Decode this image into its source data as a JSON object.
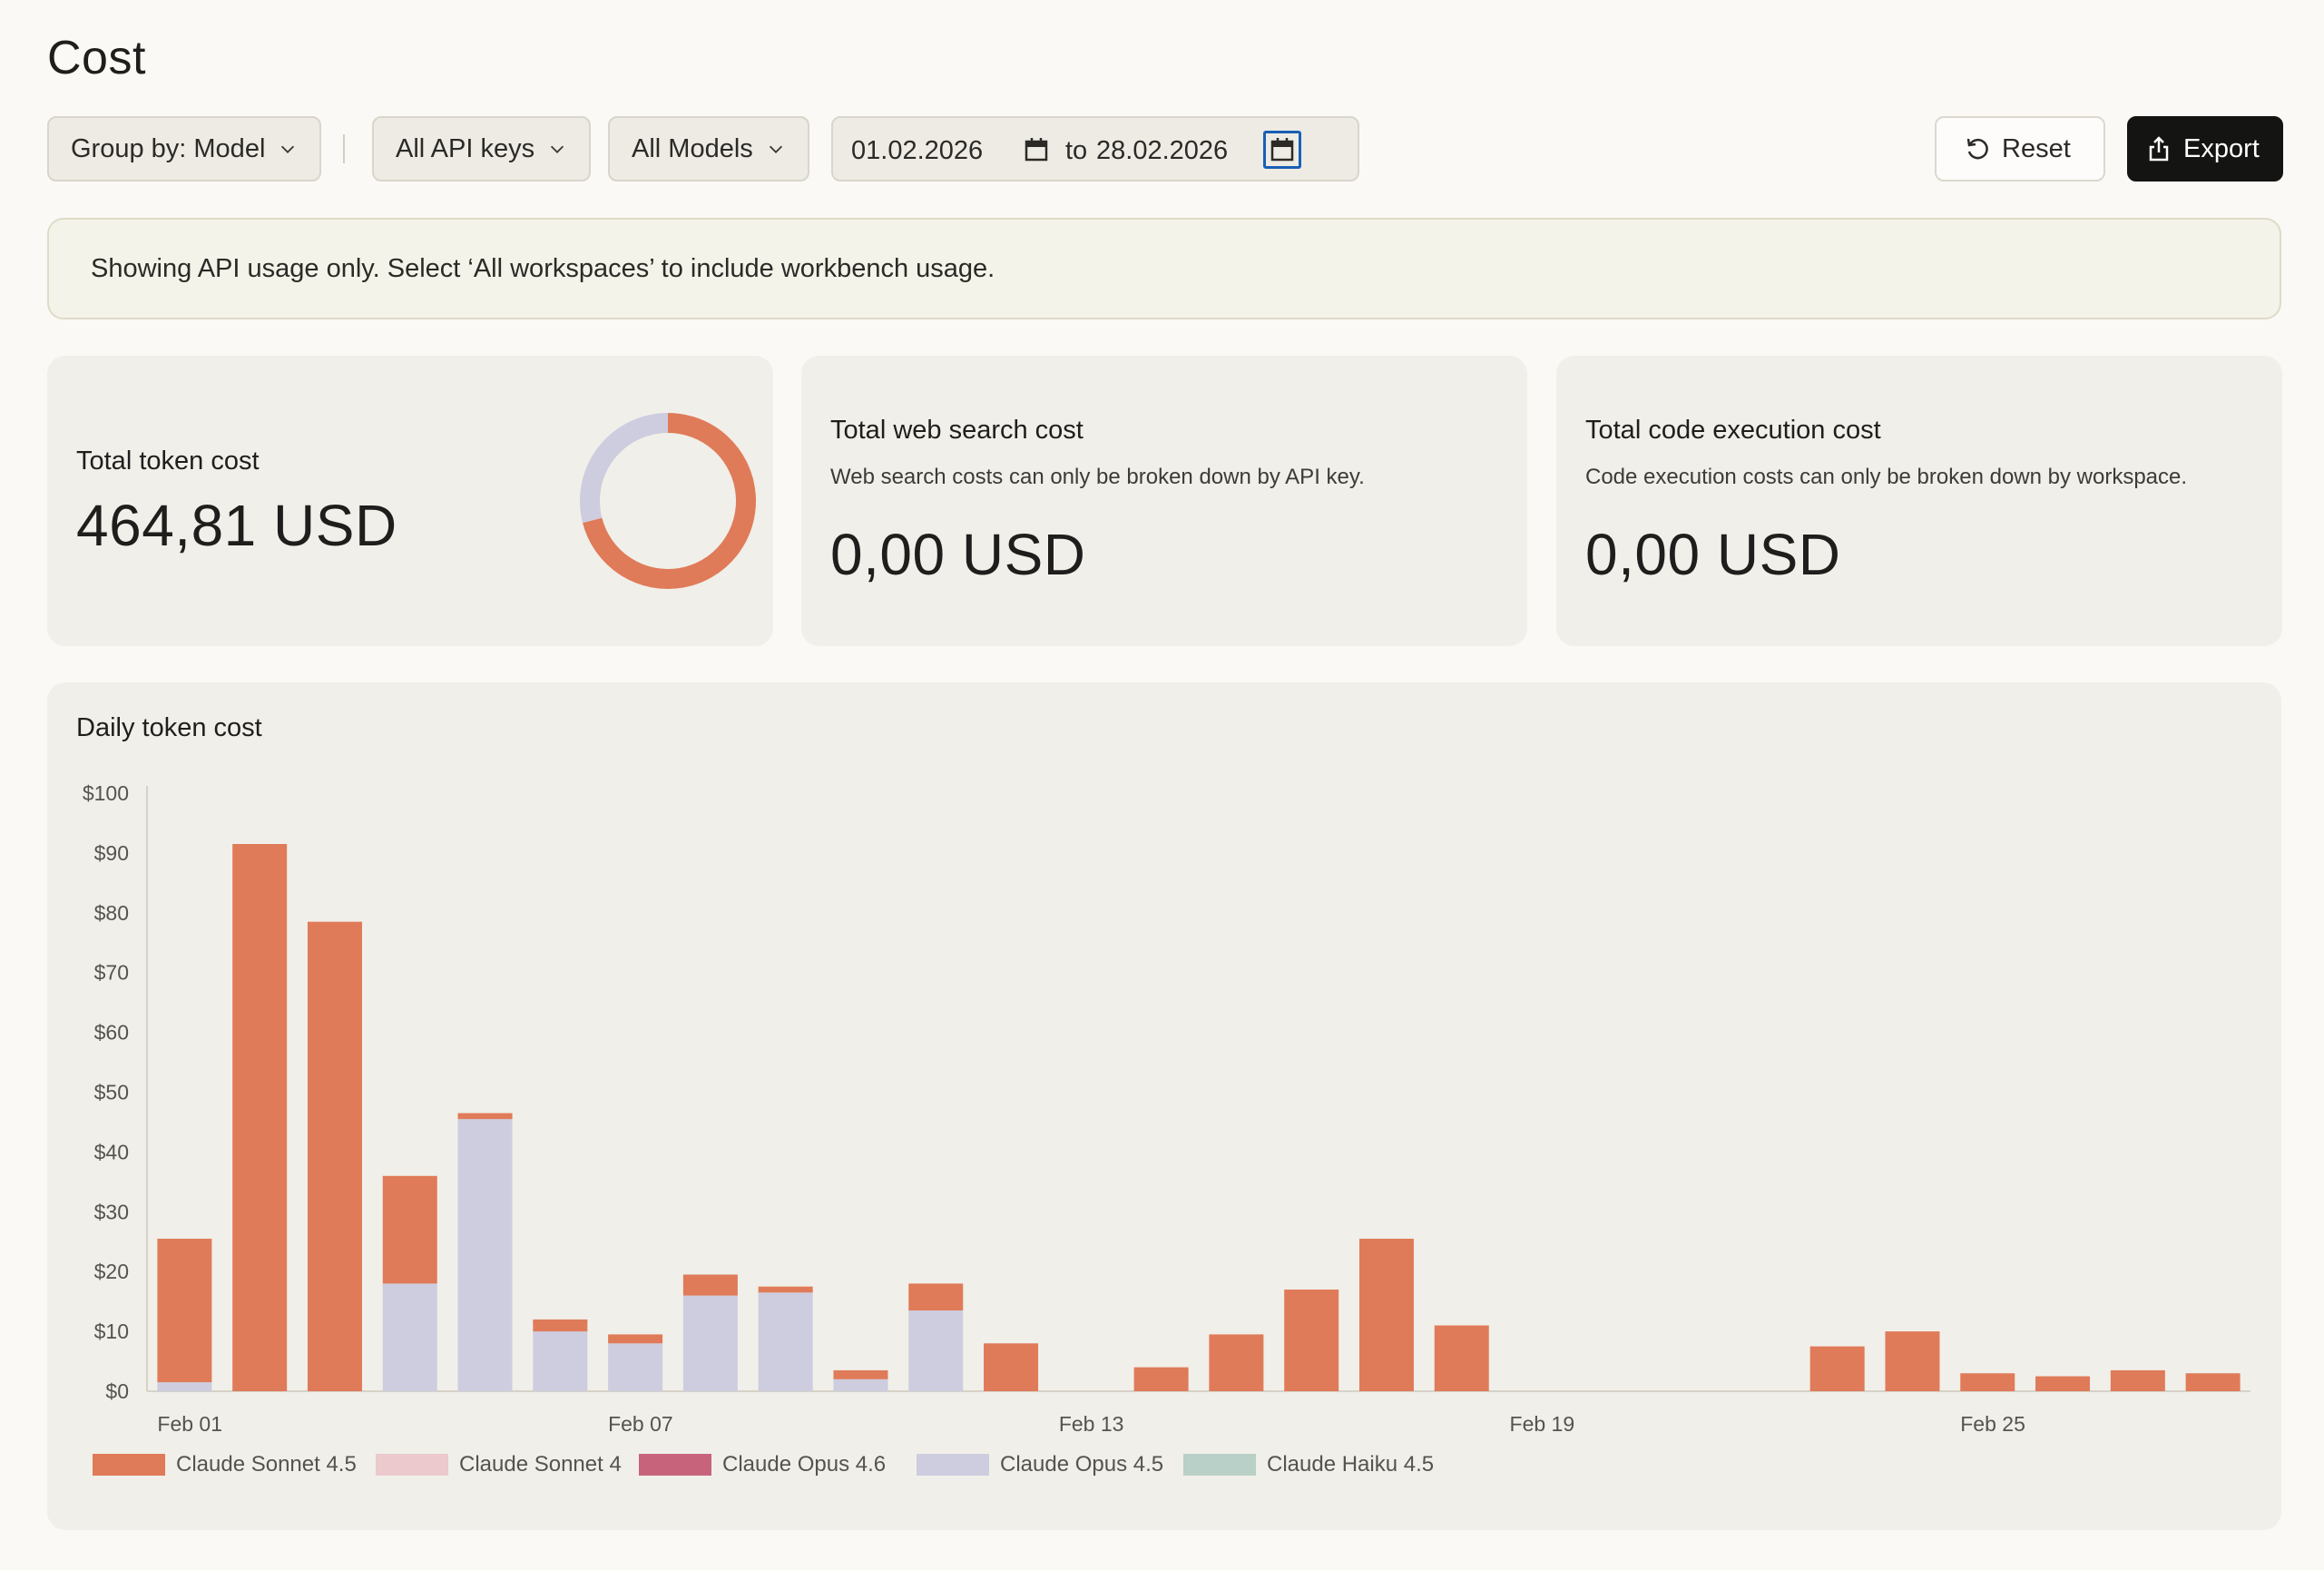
{
  "page_title": "Cost",
  "toolbar": {
    "group_by": "Group by: Model",
    "api_keys": "All API keys",
    "models": "All Models",
    "date_from": "01.02.2026",
    "date_to_prefix": "to",
    "date_to": "28.02.2026",
    "reset_label": "Reset",
    "export_label": "Export"
  },
  "notice": "Showing API usage only. Select ‘All workspaces’ to include workbench usage.",
  "cards": {
    "token": {
      "label": "Total token cost",
      "value": "464,81 USD"
    },
    "web_search": {
      "label": "Total web search cost",
      "sub": "Web search costs can only be broken down by API key.",
      "value": "0,00 USD"
    },
    "code_exec": {
      "label": "Total code execution cost",
      "sub": "Code execution costs can only be broken down by workspace.",
      "value": "0,00 USD"
    }
  },
  "donut": {
    "slices": [
      {
        "name": "Claude Sonnet 4.5",
        "fraction": 0.71
      },
      {
        "name": "Claude Opus 4.5",
        "fraction": 0.29
      }
    ]
  },
  "colors": {
    "sonnet45": "#df7b59",
    "sonnet4": "#ecc9cc",
    "opus46": "#c7647c",
    "opus45": "#cdcddf",
    "haiku45": "#b8d0c7"
  },
  "chart_data": {
    "type": "bar",
    "stacked": true,
    "title": "Daily token cost",
    "xlabel": "",
    "ylabel": "",
    "ylim": [
      0,
      100
    ],
    "y_ticks": [
      "$0",
      "$10",
      "$20",
      "$30",
      "$40",
      "$50",
      "$60",
      "$70",
      "$80",
      "$90",
      "$100"
    ],
    "x_tick_labels": [
      {
        "day": 1,
        "label": "Feb 01"
      },
      {
        "day": 7,
        "label": "Feb 07"
      },
      {
        "day": 13,
        "label": "Feb 13"
      },
      {
        "day": 19,
        "label": "Feb 19"
      },
      {
        "day": 25,
        "label": "Feb 25"
      }
    ],
    "days": [
      1,
      2,
      3,
      4,
      5,
      6,
      7,
      8,
      9,
      10,
      11,
      12,
      13,
      14,
      15,
      16,
      17,
      18,
      19,
      20,
      21,
      22,
      23,
      24,
      25,
      26,
      27,
      28
    ],
    "series": [
      {
        "name": "Claude Opus 4.5",
        "color_key": "opus45",
        "values": [
          1.5,
          0,
          0,
          18,
          45.5,
          10,
          8,
          16,
          16.5,
          2,
          13.5,
          0,
          0,
          0,
          0,
          0,
          0,
          0,
          0,
          0,
          0,
          0,
          0,
          0,
          0,
          0,
          0,
          0
        ]
      },
      {
        "name": "Claude Sonnet 4.5",
        "color_key": "sonnet45",
        "values": [
          24,
          91.5,
          78.5,
          18,
          1,
          2,
          1.5,
          3.5,
          1,
          1.5,
          4.5,
          8,
          0,
          4,
          9.5,
          17,
          25.5,
          11,
          0,
          0,
          0,
          0,
          7.5,
          10,
          3,
          2.5,
          3.5,
          3
        ]
      }
    ],
    "legend": [
      {
        "name": "Claude Sonnet 4.5",
        "color_key": "sonnet45"
      },
      {
        "name": "Claude Sonnet 4",
        "color_key": "sonnet4"
      },
      {
        "name": "Claude Opus 4.6",
        "color_key": "opus46"
      },
      {
        "name": "Claude Opus 4.5",
        "color_key": "opus45"
      },
      {
        "name": "Claude Haiku 4.5",
        "color_key": "haiku45"
      }
    ]
  }
}
